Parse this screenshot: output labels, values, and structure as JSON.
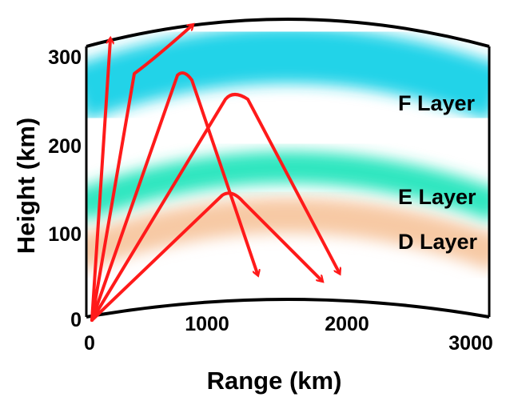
{
  "axes": {
    "x_title": "Range (km)",
    "y_title": "Height (km)",
    "x_ticks": [
      "0",
      "1000",
      "2000",
      "3000"
    ],
    "y_ticks": [
      "0",
      "100",
      "200",
      "300"
    ]
  },
  "layers": [
    {
      "name": "F Layer",
      "color": "#22d3e8"
    },
    {
      "name": "E Layer",
      "color": "#2ee6c0"
    },
    {
      "name": "D Layer",
      "color": "#f7c9a4"
    }
  ],
  "ray_color": "#ff1a1a",
  "frame_color": "#000000"
}
